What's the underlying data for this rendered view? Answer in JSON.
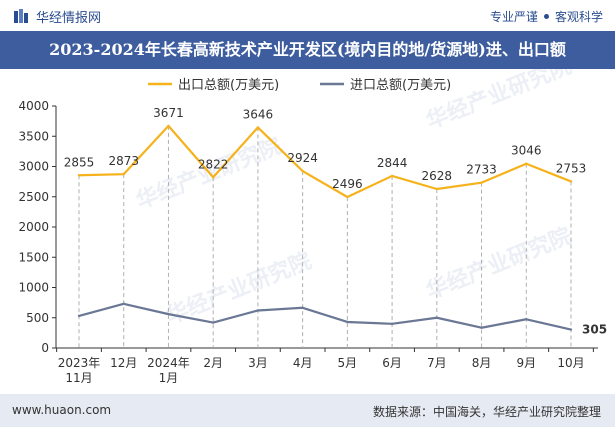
{
  "header": {
    "brand": "华经情报网",
    "slogan_left": "专业严谨",
    "slogan_right": "客观科学",
    "brand_color": "#2a4d8f"
  },
  "title": "2023-2024年长春高新技术产业开发区(境内目的地/货源地)进、出口额",
  "footer": {
    "url": "www.huaon.com",
    "source": "数据来源：中国海关，华经产业研究院整理"
  },
  "watermark": [
    "华经产业研究院",
    "www.huaon.com"
  ],
  "chart_data": {
    "type": "line",
    "title": "",
    "xlabel": "",
    "ylabel": "",
    "ylim": [
      0,
      4000
    ],
    "yticks": [
      0,
      500,
      1000,
      1500,
      2000,
      2500,
      3000,
      3500,
      4000
    ],
    "categories": [
      "2023年\n11月",
      "12月",
      "2024年\n1月",
      "2月",
      "3月",
      "4月",
      "5月",
      "6月",
      "7月",
      "8月",
      "9月",
      "10月"
    ],
    "series": [
      {
        "name": "出口总额(万美元)",
        "color": "#f5b21b",
        "values": [
          2855,
          2873,
          3671,
          2822,
          3646,
          2924,
          2496,
          2844,
          2628,
          2733,
          3046,
          2753
        ],
        "show_labels": true
      },
      {
        "name": "进口总额(万美元)",
        "color": "#6a7895",
        "values": [
          530,
          730,
          560,
          420,
          620,
          665,
          430,
          400,
          500,
          335,
          475,
          305
        ],
        "show_labels": false,
        "last_label": "305"
      }
    ],
    "legend": "top-center",
    "drop_lines": true
  }
}
